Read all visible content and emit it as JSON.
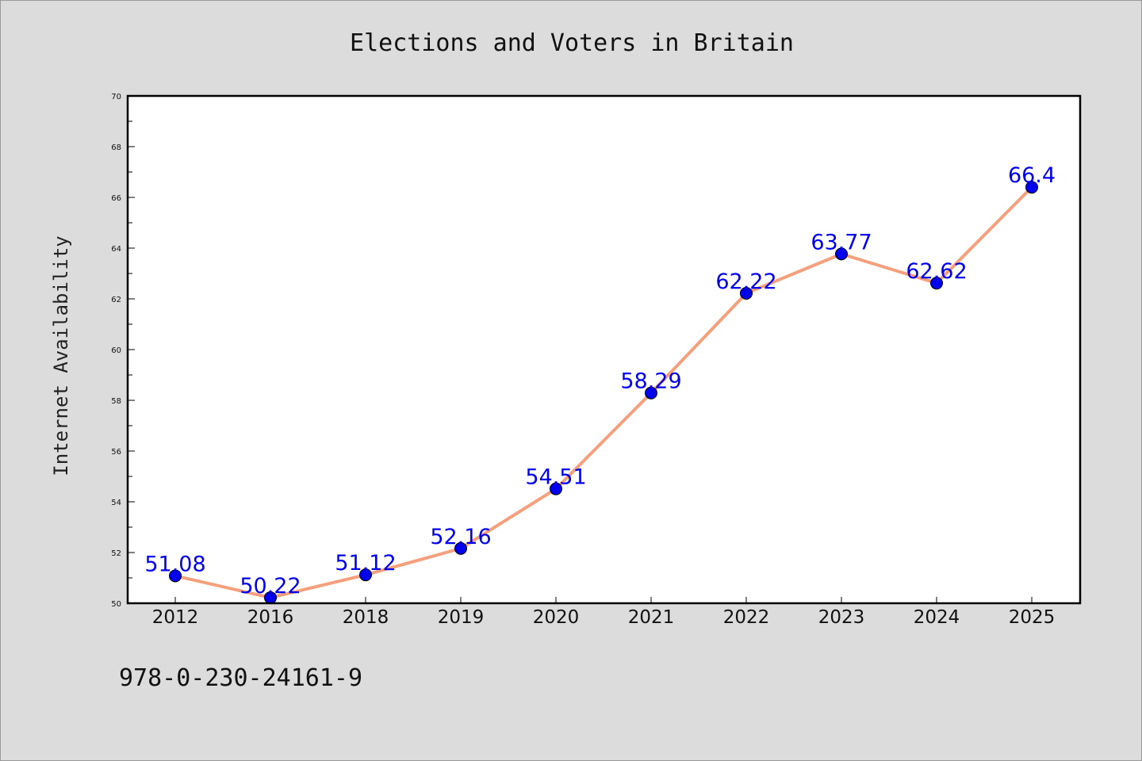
{
  "chart_data": {
    "type": "line",
    "title": "Elections and Voters in Britain",
    "xlabel": "",
    "ylabel": "Internet Availability",
    "categories": [
      "2012",
      "2016",
      "2018",
      "2019",
      "2020",
      "2021",
      "2022",
      "2023",
      "2024",
      "2025"
    ],
    "series": [
      {
        "values": [
          51.08,
          50.22,
          51.12,
          52.16,
          54.51,
          58.29,
          62.22,
          63.77,
          62.62,
          66.4
        ],
        "data_labels": [
          "51.08",
          "50.22",
          "51.12",
          "52.16",
          "54.51",
          "58.29",
          "62.22",
          "63.77",
          "62.62",
          "66.4"
        ],
        "line_color": "#f4a07c",
        "marker_color": "#0000ee",
        "label_color": "#0000ee"
      }
    ],
    "ylim": [
      50,
      70
    ],
    "yticks": [
      "50",
      "52",
      "54",
      "56",
      "58",
      "60",
      "62",
      "64",
      "66",
      "68",
      "70"
    ],
    "grid": false,
    "legend": "none"
  },
  "annotation": "978-0-230-24161-9"
}
